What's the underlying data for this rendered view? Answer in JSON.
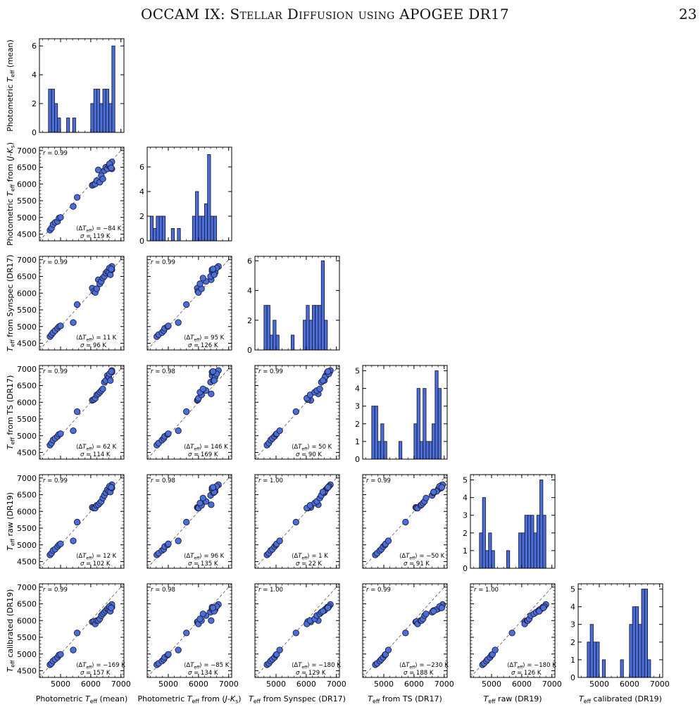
{
  "page": {
    "running_title": "OCCAM IX: Stellar Diffusion using APOGEE DR17",
    "page_number": "23"
  },
  "colors": {
    "bar_fill": "#4a6fd8",
    "point_fill": "#4a6fd8",
    "edge": "#1a1a3a",
    "one_to_one_line": "#555555"
  },
  "variables": [
    {
      "label": "Photometric Teff (mean)"
    },
    {
      "label": "Photometric Teff from (J-Ks)"
    },
    {
      "label": "Teff from Synspec (DR17)"
    },
    {
      "label": "Teff from TS (DR17)"
    },
    {
      "label": "Teff raw (DR19)"
    },
    {
      "label": "Teff calibrated (DR19)"
    }
  ],
  "axis_labels": [
    {
      "parts": [
        {
          "t": "Photometric "
        },
        {
          "t": "T",
          "i": true
        },
        {
          "t": "eff",
          "sub": true
        },
        {
          "t": " (mean)"
        }
      ]
    },
    {
      "parts": [
        {
          "t": "Photometric "
        },
        {
          "t": "T",
          "i": true
        },
        {
          "t": "eff",
          "sub": true
        },
        {
          "t": " from ("
        },
        {
          "t": "J",
          "i": true
        },
        {
          "t": "-"
        },
        {
          "t": "K",
          "i": true
        },
        {
          "t": "s",
          "sub": true
        },
        {
          "t": ")"
        }
      ]
    },
    {
      "parts": [
        {
          "t": "T",
          "i": true
        },
        {
          "t": "eff",
          "sub": true
        },
        {
          "t": " from Synspec (DR17)"
        }
      ]
    },
    {
      "parts": [
        {
          "t": "T",
          "i": true
        },
        {
          "t": "eff",
          "sub": true
        },
        {
          "t": " from TS (DR17)"
        }
      ]
    },
    {
      "parts": [
        {
          "t": "T",
          "i": true
        },
        {
          "t": "eff",
          "sub": true
        },
        {
          "t": " raw (DR19)"
        }
      ]
    },
    {
      "parts": [
        {
          "t": "T",
          "i": true
        },
        {
          "t": "eff",
          "sub": true
        },
        {
          "t": " calibrated (DR19)"
        }
      ]
    }
  ],
  "shared_axis": {
    "xlim": [
      4300,
      7100
    ],
    "ylim": [
      4300,
      7100
    ],
    "xticks": [
      5000,
      6000,
      7000
    ],
    "yticks": [
      4500,
      5000,
      5500,
      6000,
      6500,
      7000
    ]
  },
  "chart_data": {
    "type": "scatter",
    "description": "Corner plot",
    "histograms": [
      {
        "index": 0,
        "edges_start": 4600,
        "bin_width": 100,
        "counts": [
          3,
          3,
          2,
          1,
          0,
          0,
          1,
          0,
          1,
          0,
          0,
          0,
          0,
          0,
          2,
          3,
          3,
          2,
          3,
          3,
          2,
          6
        ],
        "ylim": [
          0,
          6.5
        ],
        "yticks": [
          0,
          2,
          4,
          6
        ]
      },
      {
        "index": 1,
        "edges_start": 4400,
        "bin_width": 100,
        "counts": [
          2,
          1,
          2,
          2,
          2,
          0,
          0,
          1,
          0,
          1,
          0,
          0,
          0,
          0,
          2,
          4,
          2,
          2,
          3,
          7,
          2,
          2
        ],
        "ylim": [
          0,
          7.6
        ],
        "yticks": [
          0,
          2,
          4,
          6
        ]
      },
      {
        "index": 2,
        "edges_start": 4600,
        "bin_width": 100,
        "counts": [
          3,
          3,
          1,
          2,
          1,
          0,
          0,
          0,
          0,
          1,
          0,
          0,
          0,
          2,
          3,
          2,
          3,
          3,
          3,
          6,
          2
        ],
        "ylim": [
          0,
          6.3
        ],
        "yticks": [
          0,
          2,
          4,
          6
        ]
      },
      {
        "index": 3,
        "edges_start": 4600,
        "bin_width": 100,
        "counts": [
          3,
          3,
          1,
          2,
          1,
          0,
          0,
          0,
          0,
          1,
          0,
          0,
          0,
          0,
          2,
          4,
          1,
          4,
          1,
          1,
          2,
          5,
          4
        ],
        "ylim": [
          0,
          5.3
        ],
        "yticks": [
          0,
          1,
          2,
          3,
          4,
          5
        ]
      },
      {
        "index": 4,
        "edges_start": 4600,
        "bin_width": 100,
        "counts": [
          2,
          4,
          1,
          2,
          1,
          0,
          0,
          0,
          0,
          1,
          0,
          0,
          0,
          2,
          2,
          3,
          3,
          3,
          2,
          3,
          5,
          3
        ],
        "ylim": [
          0,
          5.3
        ],
        "yticks": [
          0,
          1,
          2,
          3,
          4,
          5
        ]
      },
      {
        "index": 5,
        "edges_start": 4600,
        "bin_width": 100,
        "counts": [
          2,
          3,
          2,
          2,
          0,
          1,
          0,
          0,
          0,
          0,
          0,
          1,
          0,
          0,
          3,
          4,
          4,
          3,
          5,
          5,
          1
        ],
        "ylim": [
          0,
          5.3
        ],
        "yticks": [
          0,
          1,
          2,
          3,
          4,
          5
        ]
      }
    ],
    "scatter_panels": [
      {
        "row": 1,
        "col": 0,
        "r": "0.99",
        "mean": "−84 K",
        "sigma": "119 K"
      },
      {
        "row": 2,
        "col": 0,
        "r": "0.99",
        "mean": "11 K",
        "sigma": "96 K"
      },
      {
        "row": 2,
        "col": 1,
        "r": "0.99",
        "mean": "95 K",
        "sigma": "126 K"
      },
      {
        "row": 3,
        "col": 0,
        "r": "0.99",
        "mean": "62 K",
        "sigma": "114 K"
      },
      {
        "row": 3,
        "col": 1,
        "r": "0.98",
        "mean": "146 K",
        "sigma": "169 K"
      },
      {
        "row": 3,
        "col": 2,
        "r": "0.99",
        "mean": "50 K",
        "sigma": "90 K"
      },
      {
        "row": 4,
        "col": 0,
        "r": "0.99",
        "mean": "12 K",
        "sigma": "102 K"
      },
      {
        "row": 4,
        "col": 1,
        "r": "0.98",
        "mean": "96 K",
        "sigma": "135 K"
      },
      {
        "row": 4,
        "col": 2,
        "r": "1.00",
        "mean": "1 K",
        "sigma": "22 K"
      },
      {
        "row": 4,
        "col": 3,
        "r": "0.99",
        "mean": "−50 K",
        "sigma": "91 K"
      },
      {
        "row": 5,
        "col": 0,
        "r": "0.99",
        "mean": "−169 K",
        "sigma": "157 K"
      },
      {
        "row": 5,
        "col": 1,
        "r": "0.98",
        "mean": "−85 K",
        "sigma": "134 K"
      },
      {
        "row": 5,
        "col": 2,
        "r": "1.00",
        "mean": "−180 K",
        "sigma": "129 K"
      },
      {
        "row": 5,
        "col": 3,
        "r": "0.99",
        "mean": "−230 K",
        "sigma": "188 K"
      },
      {
        "row": 5,
        "col": 4,
        "r": "1.00",
        "mean": "−180 K",
        "sigma": "126 K"
      }
    ],
    "stars": [
      [
        4650,
        4620,
        4700,
        4720,
        4700,
        4680
      ],
      [
        4700,
        4680,
        4760,
        4780,
        4750,
        4720
      ],
      [
        4750,
        4790,
        4820,
        4870,
        4830,
        4790
      ],
      [
        4820,
        4850,
        4880,
        4920,
        4870,
        4840
      ],
      [
        4900,
        4880,
        4950,
        4980,
        4950,
        4900
      ],
      [
        4950,
        4980,
        5000,
        5040,
        5000,
        4970
      ],
      [
        5000,
        5000,
        5020,
        5060,
        5030,
        4990
      ],
      [
        5420,
        5330,
        5120,
        5150,
        5120,
        5120
      ],
      [
        5550,
        5600,
        5660,
        5720,
        5680,
        5630
      ],
      [
        6050,
        5960,
        6150,
        6060,
        6120,
        5960
      ],
      [
        6100,
        5980,
        6050,
        6080,
        6100,
        5970
      ],
      [
        6150,
        6000,
        6020,
        6120,
        6100,
        5900
      ],
      [
        6200,
        6100,
        6130,
        6220,
        6180,
        6000
      ],
      [
        6250,
        6420,
        6400,
        6250,
        6200,
        6000
      ],
      [
        6300,
        6050,
        6280,
        6300,
        6250,
        6050
      ],
      [
        6350,
        6250,
        6350,
        6350,
        6300,
        6150
      ],
      [
        6400,
        6150,
        6450,
        6400,
        6400,
        6200
      ],
      [
        6450,
        6400,
        6500,
        6600,
        6480,
        6250
      ],
      [
        6500,
        6500,
        6600,
        6650,
        6560,
        6300
      ],
      [
        6550,
        6450,
        6650,
        6800,
        6650,
        6350
      ],
      [
        6600,
        6550,
        6620,
        6750,
        6600,
        6330
      ],
      [
        6650,
        6520,
        6550,
        6650,
        6580,
        6280
      ],
      [
        6700,
        6450,
        6700,
        6900,
        6700,
        6400
      ],
      [
        6700,
        6660,
        6800,
        6950,
        6800,
        6480
      ],
      [
        6620,
        6600,
        6750,
        6850,
        6750,
        6420
      ],
      [
        6680,
        6480,
        6720,
        6920,
        6720,
        6380
      ]
    ]
  }
}
